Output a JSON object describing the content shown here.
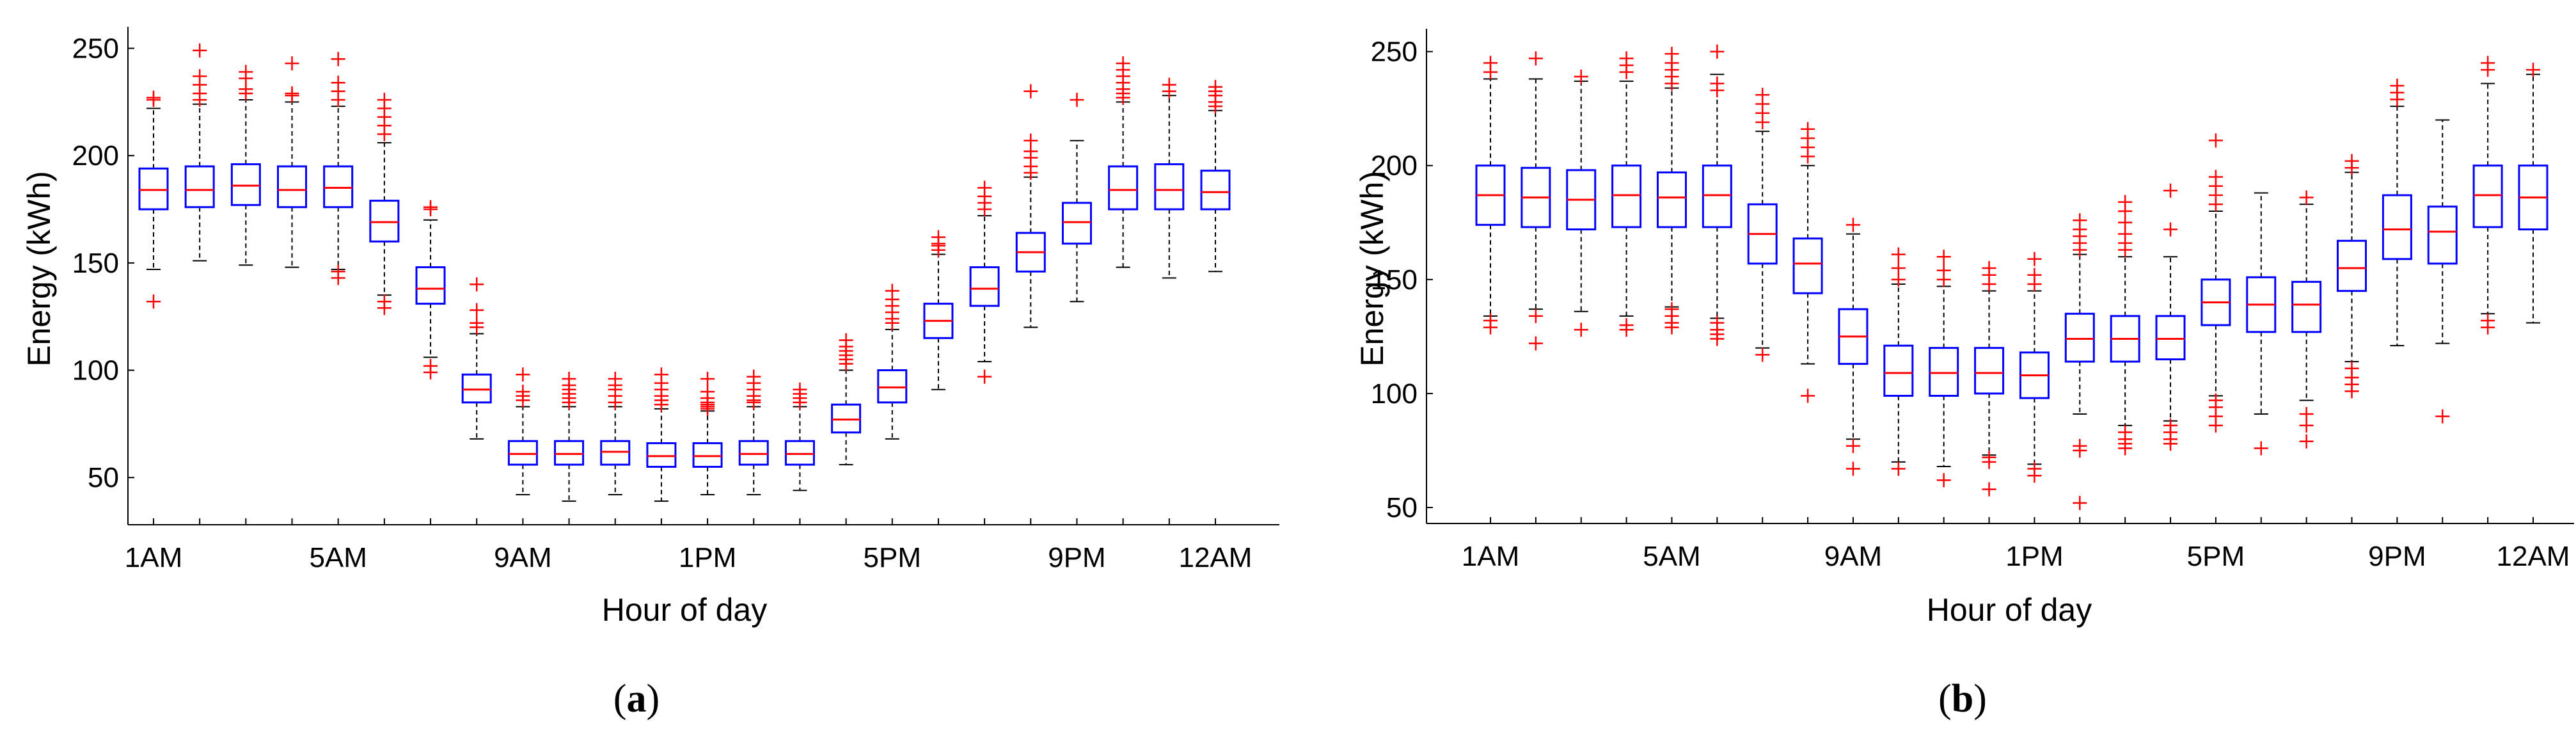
{
  "colors": {
    "box": "#0000ff",
    "median": "#ff0000",
    "whisker": "#000000",
    "outlier": "#ff0000"
  },
  "chart_data": [
    {
      "type": "boxplot",
      "panel_label": "(a)",
      "panel_letter": "a",
      "xlabel": "Hour of day",
      "ylabel": "Energy (kWh)",
      "ylim": [
        28,
        260
      ],
      "yticks": [
        50,
        100,
        150,
        200,
        250
      ],
      "xtick_labels": [
        {
          "hour": 1,
          "label": "1AM"
        },
        {
          "hour": 5,
          "label": "5AM"
        },
        {
          "hour": 9,
          "label": "9AM"
        },
        {
          "hour": 13,
          "label": "1PM"
        },
        {
          "hour": 17,
          "label": "5PM"
        },
        {
          "hour": 21,
          "label": "9PM"
        },
        {
          "hour": 24,
          "label": "12AM"
        }
      ],
      "boxes": [
        {
          "hour": 1,
          "whislo": 147,
          "q1": 175,
          "med": 184,
          "q3": 194,
          "whishi": 222,
          "outliers": [
            132,
            226,
            227
          ]
        },
        {
          "hour": 2,
          "whislo": 151,
          "q1": 176,
          "med": 184,
          "q3": 195,
          "whishi": 224,
          "outliers": [
            226,
            229,
            233,
            237,
            249
          ]
        },
        {
          "hour": 3,
          "whislo": 149,
          "q1": 177,
          "med": 186,
          "q3": 196,
          "whishi": 226,
          "outliers": [
            229,
            231,
            236,
            239
          ]
        },
        {
          "hour": 4,
          "whislo": 148,
          "q1": 176,
          "med": 184,
          "q3": 195,
          "whishi": 225,
          "outliers": [
            228,
            229,
            243
          ]
        },
        {
          "hour": 5,
          "whislo": 147,
          "q1": 176,
          "med": 185,
          "q3": 195,
          "whishi": 223,
          "outliers": [
            143,
            146,
            226,
            230,
            234,
            245
          ]
        },
        {
          "hour": 6,
          "whislo": 135,
          "q1": 160,
          "med": 169,
          "q3": 179,
          "whishi": 206,
          "outliers": [
            129,
            132,
            210,
            214,
            218,
            222,
            226
          ]
        },
        {
          "hour": 7,
          "whislo": 106,
          "q1": 131,
          "med": 138,
          "q3": 148,
          "whishi": 170,
          "outliers": [
            99,
            102,
            175,
            176
          ]
        },
        {
          "hour": 8,
          "whislo": 68,
          "q1": 85,
          "med": 91,
          "q3": 98,
          "whishi": 117,
          "outliers": [
            120,
            122,
            128,
            140
          ]
        },
        {
          "hour": 9,
          "whislo": 42,
          "q1": 56,
          "med": 61,
          "q3": 67,
          "whishi": 83,
          "outliers": [
            86,
            88,
            90,
            98
          ]
        },
        {
          "hour": 10,
          "whislo": 39,
          "q1": 56,
          "med": 61,
          "q3": 67,
          "whishi": 83,
          "outliers": [
            85,
            87,
            89,
            91,
            93,
            96
          ]
        },
        {
          "hour": 11,
          "whislo": 42,
          "q1": 56,
          "med": 62,
          "q3": 67,
          "whishi": 83,
          "outliers": [
            85,
            88,
            91,
            93,
            96
          ]
        },
        {
          "hour": 12,
          "whislo": 39,
          "q1": 55,
          "med": 60,
          "q3": 66,
          "whishi": 82,
          "outliers": [
            84,
            86,
            88,
            91,
            94,
            98
          ]
        },
        {
          "hour": 13,
          "whislo": 42,
          "q1": 55,
          "med": 60,
          "q3": 66,
          "whishi": 81,
          "outliers": [
            82,
            83,
            84,
            85,
            87,
            90,
            96
          ]
        },
        {
          "hour": 14,
          "whislo": 42,
          "q1": 56,
          "med": 61,
          "q3": 67,
          "whishi": 83,
          "outliers": [
            85,
            86,
            88,
            91,
            94,
            97
          ]
        },
        {
          "hour": 15,
          "whislo": 44,
          "q1": 56,
          "med": 61,
          "q3": 67,
          "whishi": 83,
          "outliers": [
            85,
            87,
            89,
            91
          ]
        },
        {
          "hour": 16,
          "whislo": 56,
          "q1": 71,
          "med": 77,
          "q3": 84,
          "whishi": 100,
          "outliers": [
            103,
            105,
            107,
            109,
            111,
            114
          ]
        },
        {
          "hour": 17,
          "whislo": 68,
          "q1": 85,
          "med": 92,
          "q3": 100,
          "whishi": 119,
          "outliers": [
            122,
            124,
            127,
            130,
            133,
            137
          ]
        },
        {
          "hour": 18,
          "whislo": 91,
          "q1": 115,
          "med": 123,
          "q3": 131,
          "whishi": 154,
          "outliers": [
            156,
            158,
            159,
            162
          ]
        },
        {
          "hour": 19,
          "whislo": 104,
          "q1": 130,
          "med": 138,
          "q3": 148,
          "whishi": 172,
          "outliers": [
            97,
            175,
            178,
            181,
            185
          ]
        },
        {
          "hour": 20,
          "whislo": 120,
          "q1": 146,
          "med": 155,
          "q3": 164,
          "whishi": 190,
          "outliers": [
            192,
            195,
            199,
            202,
            207,
            230
          ]
        },
        {
          "hour": 21,
          "whislo": 132,
          "q1": 159,
          "med": 169,
          "q3": 178,
          "whishi": 207,
          "outliers": [
            226
          ]
        },
        {
          "hour": 22,
          "whislo": 148,
          "q1": 175,
          "med": 184,
          "q3": 195,
          "whishi": 225,
          "outliers": [
            227,
            229,
            231,
            234,
            237,
            240,
            243
          ]
        },
        {
          "hour": 23,
          "whislo": 143,
          "q1": 175,
          "med": 184,
          "q3": 196,
          "whishi": 228,
          "outliers": [
            230,
            233
          ]
        },
        {
          "hour": 24,
          "whislo": 146,
          "q1": 175,
          "med": 183,
          "q3": 193,
          "whishi": 221,
          "outliers": [
            223,
            225,
            228,
            230,
            232
          ]
        }
      ]
    },
    {
      "type": "boxplot",
      "panel_label": "(b)",
      "panel_letter": "b",
      "xlabel": "Hour of day",
      "ylabel": "Energy (kWh)",
      "ylim": [
        43,
        260
      ],
      "yticks": [
        50,
        100,
        150,
        200,
        250
      ],
      "xtick_labels": [
        {
          "hour": 1,
          "label": "1AM"
        },
        {
          "hour": 5,
          "label": "5AM"
        },
        {
          "hour": 9,
          "label": "9AM"
        },
        {
          "hour": 13,
          "label": "1PM"
        },
        {
          "hour": 17,
          "label": "5PM"
        },
        {
          "hour": 21,
          "label": "9PM"
        },
        {
          "hour": 24,
          "label": "12AM"
        }
      ],
      "boxes": [
        {
          "hour": 1,
          "whislo": 134,
          "q1": 174,
          "med": 187,
          "q3": 200,
          "whishi": 238,
          "outliers": [
            129,
            132,
            241,
            245
          ]
        },
        {
          "hour": 2,
          "whislo": 137,
          "q1": 173,
          "med": 186,
          "q3": 199,
          "whishi": 238,
          "outliers": [
            122,
            134,
            247
          ]
        },
        {
          "hour": 3,
          "whislo": 136,
          "q1": 172,
          "med": 185,
          "q3": 198,
          "whishi": 237,
          "outliers": [
            128,
            239
          ]
        },
        {
          "hour": 4,
          "whislo": 134,
          "q1": 173,
          "med": 187,
          "q3": 200,
          "whishi": 237,
          "outliers": [
            128,
            130,
            241,
            244,
            247
          ]
        },
        {
          "hour": 5,
          "whislo": 138,
          "q1": 173,
          "med": 186,
          "q3": 197,
          "whishi": 234,
          "outliers": [
            129,
            131,
            134,
            137,
            236,
            239,
            242,
            245,
            249
          ]
        },
        {
          "hour": 6,
          "whislo": 133,
          "q1": 173,
          "med": 187,
          "q3": 200,
          "whishi": 240,
          "outliers": [
            124,
            126,
            128,
            131,
            233,
            236,
            250
          ]
        },
        {
          "hour": 7,
          "whislo": 120,
          "q1": 157,
          "med": 170,
          "q3": 183,
          "whishi": 215,
          "outliers": [
            117,
            219,
            223,
            227,
            231
          ]
        },
        {
          "hour": 8,
          "whislo": 113,
          "q1": 144,
          "med": 157,
          "q3": 168,
          "whishi": 200,
          "outliers": [
            99,
            204,
            208,
            212,
            216
          ]
        },
        {
          "hour": 9,
          "whislo": 80,
          "q1": 113,
          "med": 125,
          "q3": 137,
          "whishi": 170,
          "outliers": [
            67,
            77,
            174
          ]
        },
        {
          "hour": 10,
          "whislo": 70,
          "q1": 99,
          "med": 109,
          "q3": 121,
          "whishi": 148,
          "outliers": [
            67,
            150,
            155,
            161
          ]
        },
        {
          "hour": 11,
          "whislo": 68,
          "q1": 99,
          "med": 109,
          "q3": 120,
          "whishi": 147,
          "outliers": [
            62,
            150,
            154,
            160
          ]
        },
        {
          "hour": 12,
          "whislo": 73,
          "q1": 100,
          "med": 109,
          "q3": 120,
          "whishi": 145,
          "outliers": [
            58,
            70,
            72,
            148,
            152,
            155
          ]
        },
        {
          "hour": 13,
          "whislo": 69,
          "q1": 98,
          "med": 108,
          "q3": 118,
          "whishi": 145,
          "outliers": [
            64,
            67,
            148,
            152,
            159
          ]
        },
        {
          "hour": 14,
          "whislo": 91,
          "q1": 114,
          "med": 124,
          "q3": 135,
          "whishi": 161,
          "outliers": [
            52,
            75,
            77,
            163,
            166,
            169,
            172,
            176
          ]
        },
        {
          "hour": 15,
          "whislo": 86,
          "q1": 114,
          "med": 124,
          "q3": 134,
          "whishi": 160,
          "outliers": [
            76,
            78,
            80,
            83,
            163,
            166,
            170,
            175,
            180,
            184
          ]
        },
        {
          "hour": 16,
          "whislo": 88,
          "q1": 115,
          "med": 124,
          "q3": 134,
          "whishi": 160,
          "outliers": [
            78,
            80,
            83,
            86,
            172,
            189
          ]
        },
        {
          "hour": 17,
          "whislo": 99,
          "q1": 130,
          "med": 140,
          "q3": 150,
          "whishi": 180,
          "outliers": [
            86,
            90,
            94,
            97,
            183,
            187,
            191,
            195,
            211
          ]
        },
        {
          "hour": 18,
          "whislo": 91,
          "q1": 127,
          "med": 139,
          "q3": 151,
          "whishi": 188,
          "outliers": [
            76
          ]
        },
        {
          "hour": 19,
          "whislo": 97,
          "q1": 127,
          "med": 139,
          "q3": 149,
          "whishi": 183,
          "outliers": [
            79,
            86,
            91,
            186
          ]
        },
        {
          "hour": 20,
          "whislo": 114,
          "q1": 145,
          "med": 155,
          "q3": 167,
          "whishi": 197,
          "outliers": [
            101,
            104,
            107,
            111,
            199,
            202
          ]
        },
        {
          "hour": 21,
          "whislo": 121,
          "q1": 159,
          "med": 172,
          "q3": 187,
          "whishi": 226,
          "outliers": [
            229,
            232,
            235
          ]
        },
        {
          "hour": 22,
          "whislo": 122,
          "q1": 157,
          "med": 171,
          "q3": 182,
          "whishi": 220,
          "outliers": [
            90
          ]
        },
        {
          "hour": 23,
          "whislo": 135,
          "q1": 173,
          "med": 187,
          "q3": 200,
          "whishi": 236,
          "outliers": [
            129,
            132,
            242,
            245
          ]
        },
        {
          "hour": 24,
          "whislo": 131,
          "q1": 172,
          "med": 186,
          "q3": 200,
          "whishi": 240,
          "outliers": [
            242
          ]
        }
      ]
    }
  ]
}
